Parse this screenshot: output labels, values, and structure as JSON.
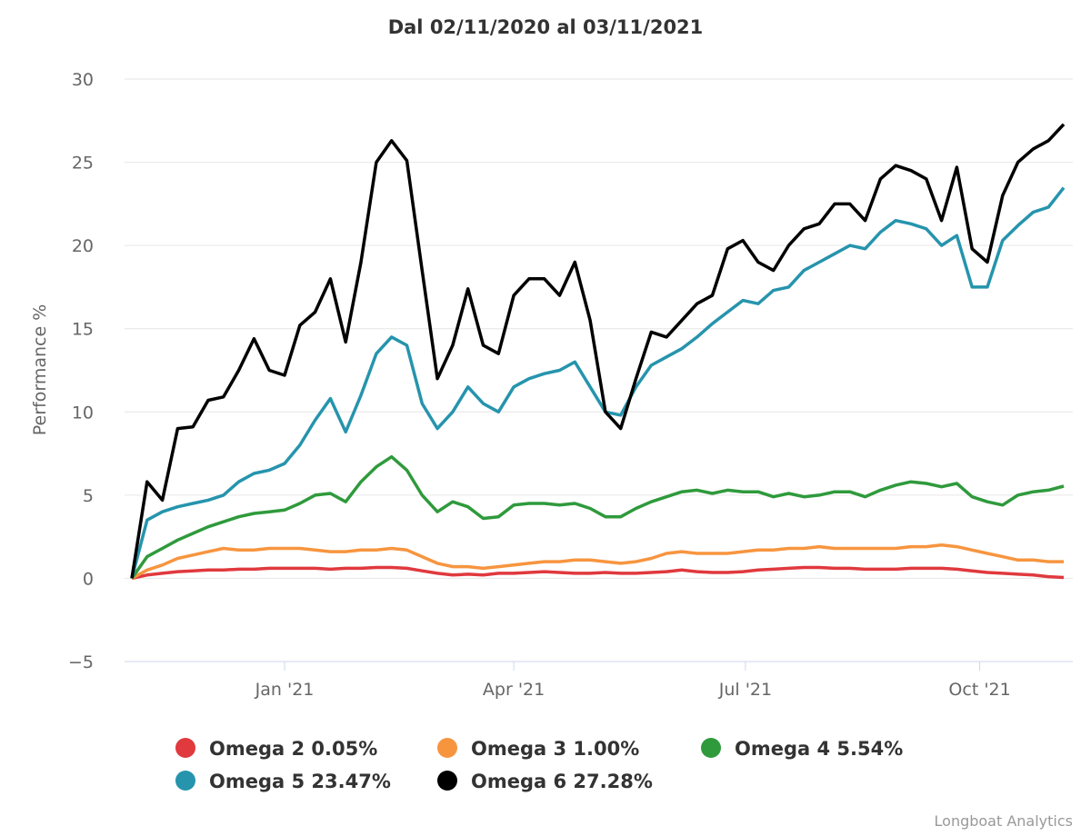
{
  "chart_data": {
    "type": "line",
    "title": "Dal 02/11/2020 al 03/11/2021",
    "xlabel": "",
    "ylabel": "Performance %",
    "x_start": "2020-11-02",
    "x_end": "2021-11-03",
    "x_ticks": [
      {
        "label": "Jan '21",
        "date": "2021-01-01"
      },
      {
        "label": "Apr '21",
        "date": "2021-04-01"
      },
      {
        "label": "Jul '21",
        "date": "2021-07-01"
      },
      {
        "label": "Oct '21",
        "date": "2021-10-01"
      }
    ],
    "y_ticks": [
      30,
      25,
      20,
      15,
      10,
      5,
      0,
      -5
    ],
    "y_tick_labels": [
      "30",
      "25",
      "20",
      "15",
      "10",
      "5",
      "0",
      "−5"
    ],
    "ylim": [
      -5,
      30
    ],
    "grid": true,
    "legend_position": "bottom",
    "series": [
      {
        "name": "Omega 2",
        "legend": "Omega 2 0.05%",
        "color": "#e0393e",
        "values": [
          0,
          0.2,
          0.3,
          0.4,
          0.45,
          0.5,
          0.5,
          0.55,
          0.55,
          0.6,
          0.6,
          0.6,
          0.6,
          0.55,
          0.6,
          0.6,
          0.65,
          0.65,
          0.6,
          0.45,
          0.3,
          0.2,
          0.25,
          0.2,
          0.3,
          0.3,
          0.35,
          0.4,
          0.35,
          0.3,
          0.3,
          0.35,
          0.3,
          0.3,
          0.35,
          0.4,
          0.5,
          0.4,
          0.35,
          0.35,
          0.4,
          0.5,
          0.55,
          0.6,
          0.65,
          0.65,
          0.6,
          0.6,
          0.55,
          0.55,
          0.55,
          0.6,
          0.6,
          0.6,
          0.55,
          0.45,
          0.35,
          0.3,
          0.25,
          0.2,
          0.1,
          0.05
        ]
      },
      {
        "name": "Omega 3",
        "legend": "Omega 3 1.00%",
        "color": "#f7953f",
        "values": [
          0,
          0.5,
          0.8,
          1.2,
          1.4,
          1.6,
          1.8,
          1.7,
          1.7,
          1.8,
          1.8,
          1.8,
          1.7,
          1.6,
          1.6,
          1.7,
          1.7,
          1.8,
          1.7,
          1.3,
          0.9,
          0.7,
          0.7,
          0.6,
          0.7,
          0.8,
          0.9,
          1.0,
          1.0,
          1.1,
          1.1,
          1.0,
          0.9,
          1.0,
          1.2,
          1.5,
          1.6,
          1.5,
          1.5,
          1.5,
          1.6,
          1.7,
          1.7,
          1.8,
          1.8,
          1.9,
          1.8,
          1.8,
          1.8,
          1.8,
          1.8,
          1.9,
          1.9,
          2.0,
          1.9,
          1.7,
          1.5,
          1.3,
          1.1,
          1.1,
          1.0,
          1.0
        ]
      },
      {
        "name": "Omega 4",
        "legend": "Omega 4 5.54%",
        "color": "#2f9a3c",
        "values": [
          0,
          1.3,
          1.8,
          2.3,
          2.7,
          3.1,
          3.4,
          3.7,
          3.9,
          4.0,
          4.1,
          4.5,
          5.0,
          5.1,
          4.6,
          5.8,
          6.7,
          7.3,
          6.5,
          5.0,
          4.0,
          4.6,
          4.3,
          3.6,
          3.7,
          4.4,
          4.5,
          4.5,
          4.4,
          4.5,
          4.2,
          3.7,
          3.7,
          4.2,
          4.6,
          4.9,
          5.2,
          5.3,
          5.1,
          5.3,
          5.2,
          5.2,
          4.9,
          5.1,
          4.9,
          5.0,
          5.2,
          5.2,
          4.9,
          5.3,
          5.6,
          5.8,
          5.7,
          5.5,
          5.7,
          4.9,
          4.6,
          4.4,
          5.0,
          5.2,
          5.3,
          5.54
        ]
      },
      {
        "name": "Omega 5",
        "legend": "Omega 5 23.47%",
        "color": "#2694ad",
        "values": [
          0,
          3.5,
          4.0,
          4.3,
          4.5,
          4.7,
          5.0,
          5.8,
          6.3,
          6.5,
          6.9,
          8.0,
          9.5,
          10.8,
          8.8,
          11.0,
          13.5,
          14.5,
          14.0,
          10.5,
          9.0,
          10.0,
          11.5,
          10.5,
          10.0,
          11.5,
          12.0,
          12.3,
          12.5,
          13.0,
          11.5,
          10.0,
          9.8,
          11.5,
          12.8,
          13.3,
          13.8,
          14.5,
          15.3,
          16.0,
          16.7,
          16.5,
          17.3,
          17.5,
          18.5,
          19.0,
          19.5,
          20.0,
          19.8,
          20.8,
          21.5,
          21.3,
          21.0,
          20.0,
          20.6,
          17.5,
          17.5,
          20.3,
          21.2,
          22.0,
          22.3,
          23.47
        ]
      },
      {
        "name": "Omega 6",
        "legend": "Omega 6 27.28%",
        "color": "#000000",
        "values": [
          0,
          5.8,
          4.7,
          9.0,
          9.1,
          10.7,
          10.9,
          12.5,
          14.4,
          12.5,
          12.2,
          15.2,
          16.0,
          18.0,
          14.2,
          19.0,
          25.0,
          26.3,
          25.1,
          18.5,
          12.0,
          14.0,
          17.4,
          14.0,
          13.5,
          17.0,
          18.0,
          18.0,
          17.0,
          19.0,
          15.5,
          10.0,
          9.0,
          12.0,
          14.8,
          14.5,
          15.5,
          16.5,
          17.0,
          19.8,
          20.3,
          19.0,
          18.5,
          20.0,
          21.0,
          21.3,
          22.5,
          22.5,
          21.5,
          24.0,
          24.8,
          24.5,
          24.0,
          21.5,
          24.7,
          19.8,
          19.0,
          23.0,
          25.0,
          25.8,
          26.3,
          27.28
        ]
      }
    ]
  },
  "credit": "Longboat Analytics"
}
